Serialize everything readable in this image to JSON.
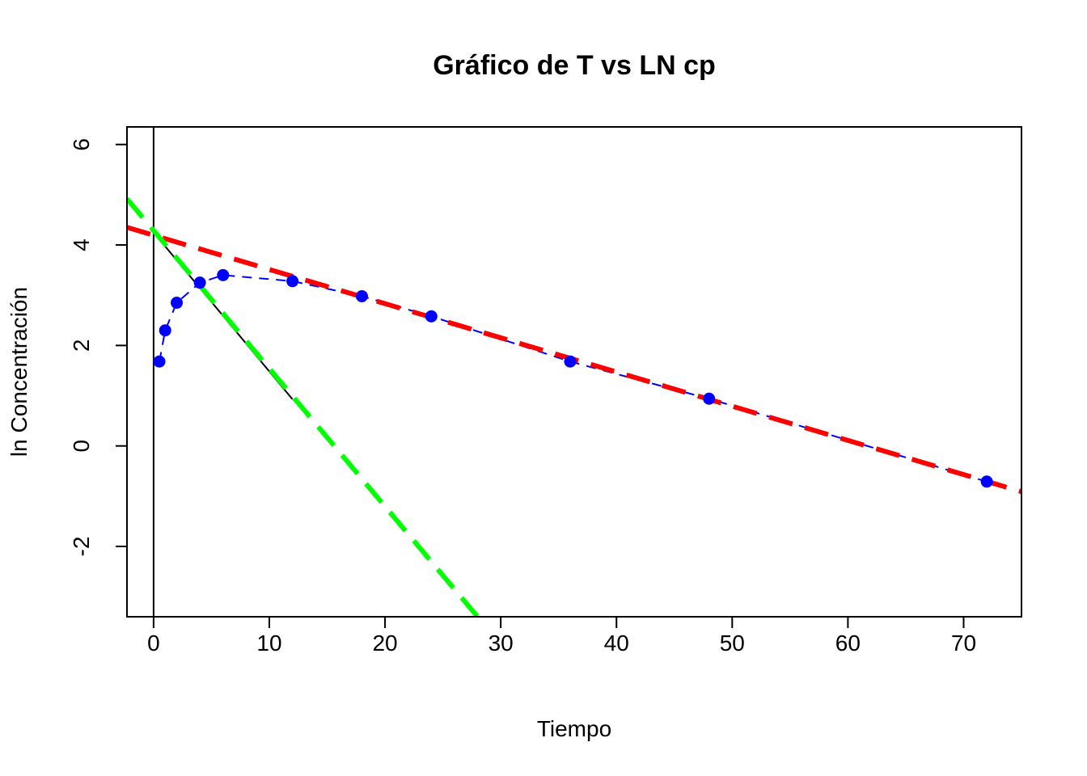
{
  "chart_data": {
    "type": "scatter",
    "title": "Gráfico de T vs LN cp",
    "xlabel": "Tiempo",
    "ylabel": "ln Concentración",
    "xlim": [
      -2.3,
      75
    ],
    "ylim": [
      -3.4,
      6.35
    ],
    "x_ticks": [
      0,
      10,
      20,
      30,
      40,
      50,
      60,
      70
    ],
    "y_ticks": [
      -2,
      0,
      2,
      4,
      6
    ],
    "grid": false,
    "legend": "none",
    "points": {
      "color": "#0000ff",
      "x": [
        0.5,
        1,
        2,
        4,
        6,
        12,
        18,
        24,
        36,
        48,
        72
      ],
      "y": [
        1.68,
        2.3,
        2.85,
        3.25,
        3.4,
        3.28,
        2.98,
        2.58,
        1.68,
        0.94,
        -0.71
      ]
    },
    "series": [
      {
        "color": "#0000ff",
        "style": "dashed-thin",
        "x": [
          0.5,
          1,
          2,
          4,
          6,
          12,
          18,
          24,
          36,
          48,
          72
        ],
        "y": [
          1.68,
          2.3,
          2.85,
          3.25,
          3.4,
          3.28,
          2.98,
          2.58,
          1.68,
          0.94,
          -0.71
        ]
      },
      {
        "color": "#000000",
        "style": "solid-thin",
        "x": [
          0,
          12
        ],
        "y": [
          4.25,
          0.93
        ]
      },
      {
        "color": "#ff0000",
        "style": "dashed-thick",
        "x": [
          -2.3,
          75
        ],
        "y": [
          4.35,
          -0.91
        ]
      },
      {
        "color": "#00ff00",
        "style": "dashed-thick",
        "x": [
          -2.3,
          28
        ],
        "y": [
          4.92,
          -3.4
        ]
      }
    ],
    "vline": {
      "x": 0,
      "color": "#000000"
    }
  }
}
